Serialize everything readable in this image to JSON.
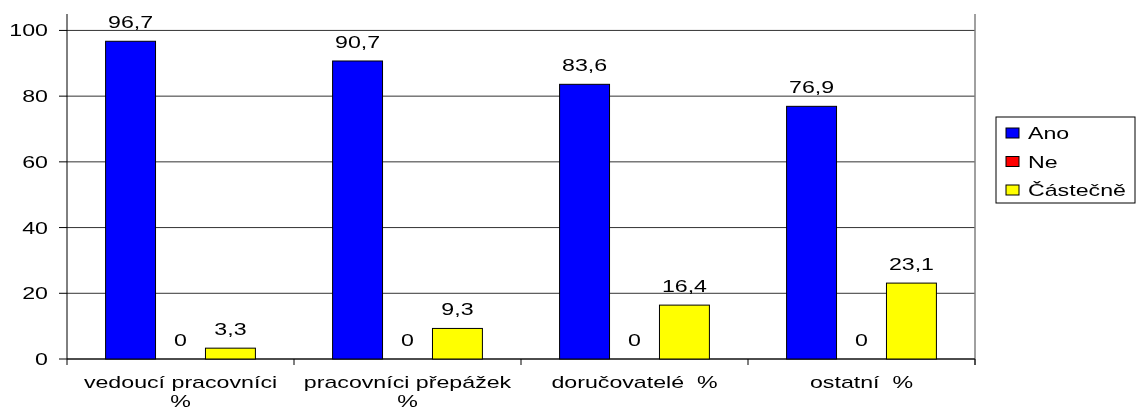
{
  "chart_data": {
    "type": "bar",
    "categories": [
      "vedoucí pracovníci %",
      "pracovníci přepážek %",
      "doručovatelé  %",
      "ostatní  %"
    ],
    "series": [
      {
        "name": "Ano",
        "color": "#0000ff",
        "values": [
          96.7,
          90.7,
          83.6,
          76.9
        ],
        "value_labels": [
          "96,7",
          "90,7",
          "83,6",
          "76,9"
        ]
      },
      {
        "name": "Ne",
        "color": "#ff0000",
        "values": [
          0,
          0,
          0,
          0
        ],
        "value_labels": [
          "0",
          "0",
          "0",
          "0"
        ]
      },
      {
        "name": "Částečně",
        "color": "#ffff00",
        "values": [
          3.3,
          9.3,
          16.4,
          23.1
        ],
        "value_labels": [
          "3,3",
          "9,3",
          "16,4",
          "23,1"
        ]
      }
    ],
    "ylim": [
      0,
      105
    ],
    "yticks": [
      0,
      20,
      40,
      60,
      80,
      100
    ],
    "grid": "y",
    "legend": "right"
  }
}
